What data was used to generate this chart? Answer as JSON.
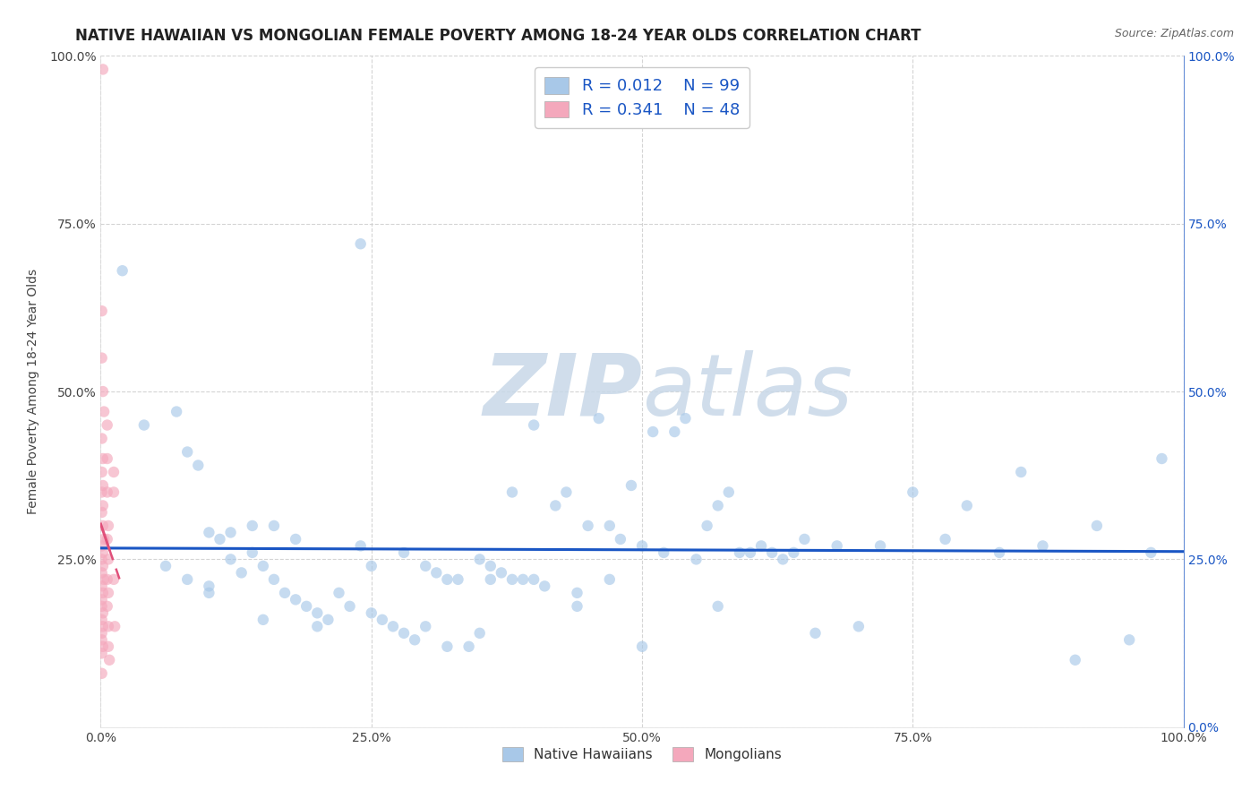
{
  "title": "NATIVE HAWAIIAN VS MONGOLIAN FEMALE POVERTY AMONG 18-24 YEAR OLDS CORRELATION CHART",
  "source": "Source: ZipAtlas.com",
  "ylabel": "Female Poverty Among 18-24 Year Olds",
  "xlim": [
    0.0,
    1.0
  ],
  "ylim": [
    0.0,
    1.0
  ],
  "xticks": [
    0.0,
    0.25,
    0.5,
    0.75,
    1.0
  ],
  "yticks": [
    0.0,
    0.25,
    0.5,
    0.75,
    1.0
  ],
  "hawaiian_color": "#a8c8e8",
  "mongolian_color": "#f4a8bc",
  "hawaiian_R": 0.012,
  "hawaiian_N": 99,
  "mongolian_R": 0.341,
  "mongolian_N": 48,
  "legend_text_color": "#1a56c4",
  "background_color": "#ffffff",
  "grid_color": "#d0d0d0",
  "watermark_zip": "ZIP",
  "watermark_atlas": "atlas",
  "right_tick_color": "#1a56c4",
  "title_fontsize": 12,
  "axis_label_fontsize": 10,
  "tick_fontsize": 10,
  "legend_fontsize": 13,
  "scatter_size": 80,
  "scatter_alpha": 0.65,
  "hawaiian_line_color": "#1a56c4",
  "mongolian_line_color": "#e0507a",
  "hawaiian_scatter_x": [
    0.04,
    0.07,
    0.08,
    0.09,
    0.1,
    0.1,
    0.11,
    0.12,
    0.13,
    0.14,
    0.15,
    0.15,
    0.16,
    0.17,
    0.18,
    0.18,
    0.19,
    0.2,
    0.21,
    0.22,
    0.23,
    0.24,
    0.25,
    0.25,
    0.26,
    0.27,
    0.28,
    0.29,
    0.3,
    0.3,
    0.31,
    0.32,
    0.33,
    0.34,
    0.35,
    0.35,
    0.36,
    0.37,
    0.38,
    0.38,
    0.39,
    0.4,
    0.41,
    0.42,
    0.43,
    0.44,
    0.44,
    0.45,
    0.46,
    0.47,
    0.47,
    0.48,
    0.49,
    0.5,
    0.5,
    0.51,
    0.52,
    0.53,
    0.54,
    0.55,
    0.56,
    0.57,
    0.57,
    0.58,
    0.59,
    0.6,
    0.61,
    0.62,
    0.63,
    0.64,
    0.65,
    0.66,
    0.68,
    0.7,
    0.72,
    0.75,
    0.78,
    0.8,
    0.83,
    0.85,
    0.87,
    0.9,
    0.92,
    0.95,
    0.97,
    0.98,
    0.02,
    0.06,
    0.08,
    0.1,
    0.12,
    0.14,
    0.16,
    0.2,
    0.24,
    0.28,
    0.32,
    0.36,
    0.4
  ],
  "hawaiian_scatter_y": [
    0.45,
    0.47,
    0.41,
    0.39,
    0.29,
    0.2,
    0.28,
    0.25,
    0.23,
    0.26,
    0.24,
    0.16,
    0.22,
    0.2,
    0.19,
    0.28,
    0.18,
    0.17,
    0.16,
    0.2,
    0.18,
    0.72,
    0.17,
    0.24,
    0.16,
    0.15,
    0.14,
    0.13,
    0.24,
    0.15,
    0.23,
    0.12,
    0.22,
    0.12,
    0.25,
    0.14,
    0.24,
    0.23,
    0.35,
    0.22,
    0.22,
    0.45,
    0.21,
    0.33,
    0.35,
    0.2,
    0.18,
    0.3,
    0.46,
    0.3,
    0.22,
    0.28,
    0.36,
    0.27,
    0.12,
    0.44,
    0.26,
    0.44,
    0.46,
    0.25,
    0.3,
    0.33,
    0.18,
    0.35,
    0.26,
    0.26,
    0.27,
    0.26,
    0.25,
    0.26,
    0.28,
    0.14,
    0.27,
    0.15,
    0.27,
    0.35,
    0.28,
    0.33,
    0.26,
    0.38,
    0.27,
    0.1,
    0.3,
    0.13,
    0.26,
    0.4,
    0.68,
    0.24,
    0.22,
    0.21,
    0.29,
    0.3,
    0.3,
    0.15,
    0.27,
    0.26,
    0.22,
    0.22,
    0.22
  ],
  "mongolian_scatter_x": [
    0.002,
    0.001,
    0.001,
    0.002,
    0.003,
    0.001,
    0.002,
    0.001,
    0.002,
    0.001,
    0.002,
    0.001,
    0.002,
    0.003,
    0.001,
    0.002,
    0.001,
    0.002,
    0.001,
    0.003,
    0.001,
    0.002,
    0.001,
    0.001,
    0.002,
    0.001,
    0.002,
    0.001,
    0.001,
    0.002,
    0.001,
    0.001,
    0.006,
    0.006,
    0.006,
    0.007,
    0.006,
    0.007,
    0.006,
    0.007,
    0.006,
    0.007,
    0.007,
    0.008,
    0.012,
    0.012,
    0.012,
    0.013
  ],
  "mongolian_scatter_y": [
    0.98,
    0.62,
    0.55,
    0.5,
    0.47,
    0.43,
    0.4,
    0.38,
    0.36,
    0.35,
    0.33,
    0.32,
    0.3,
    0.28,
    0.27,
    0.26,
    0.25,
    0.24,
    0.23,
    0.22,
    0.21,
    0.2,
    0.19,
    0.18,
    0.17,
    0.16,
    0.15,
    0.14,
    0.13,
    0.12,
    0.11,
    0.08,
    0.45,
    0.4,
    0.35,
    0.3,
    0.28,
    0.25,
    0.22,
    0.2,
    0.18,
    0.15,
    0.12,
    0.1,
    0.38,
    0.35,
    0.22,
    0.15
  ]
}
